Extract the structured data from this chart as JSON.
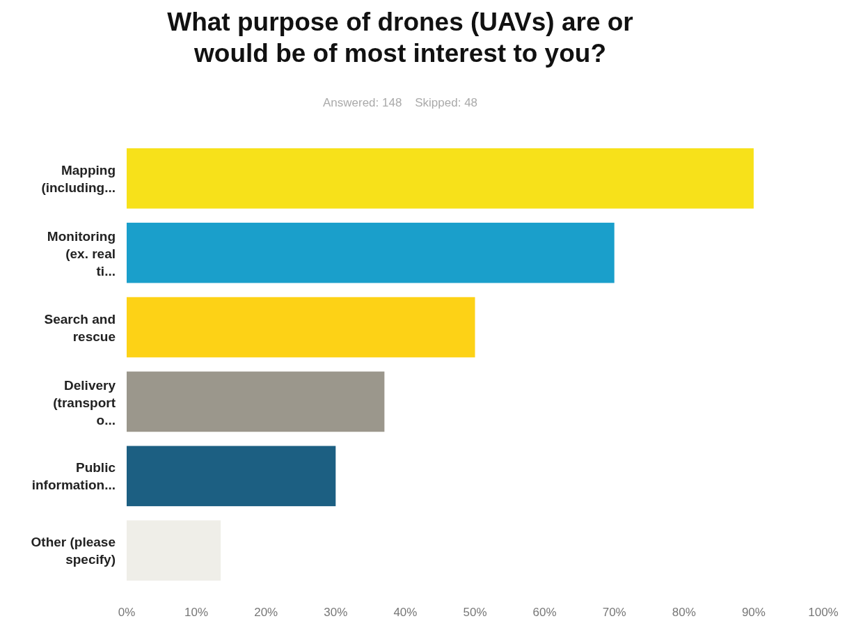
{
  "chart_data": {
    "type": "bar",
    "orientation": "horizontal",
    "title": "What purpose of drones (UAVs) are or would be of most interest to you?",
    "subtitle": "Answered: 148    Skipped: 48",
    "categories": [
      "Mapping (including...",
      "Monitoring (ex. real ti...",
      "Search and rescue",
      "Delivery (transport o...",
      "Public information...",
      "Other (please specify)"
    ],
    "values": [
      90,
      70,
      50,
      37,
      30,
      13.5
    ],
    "colors": [
      "#f7e11a",
      "#1a9fcb",
      "#fdd216",
      "#9b978c",
      "#1c5f82",
      "#efeee8"
    ],
    "xlim": [
      0,
      100
    ],
    "xticks": [
      {
        "value": 0,
        "label": "0%"
      },
      {
        "value": 10,
        "label": "10%"
      },
      {
        "value": 20,
        "label": "20%"
      },
      {
        "value": 30,
        "label": "30%"
      },
      {
        "value": 40,
        "label": "40%"
      },
      {
        "value": 50,
        "label": "50%"
      },
      {
        "value": 60,
        "label": "60%"
      },
      {
        "value": 70,
        "label": "70%"
      },
      {
        "value": 80,
        "label": "80%"
      },
      {
        "value": 90,
        "label": "90%"
      },
      {
        "value": 100,
        "label": "100%"
      }
    ]
  }
}
